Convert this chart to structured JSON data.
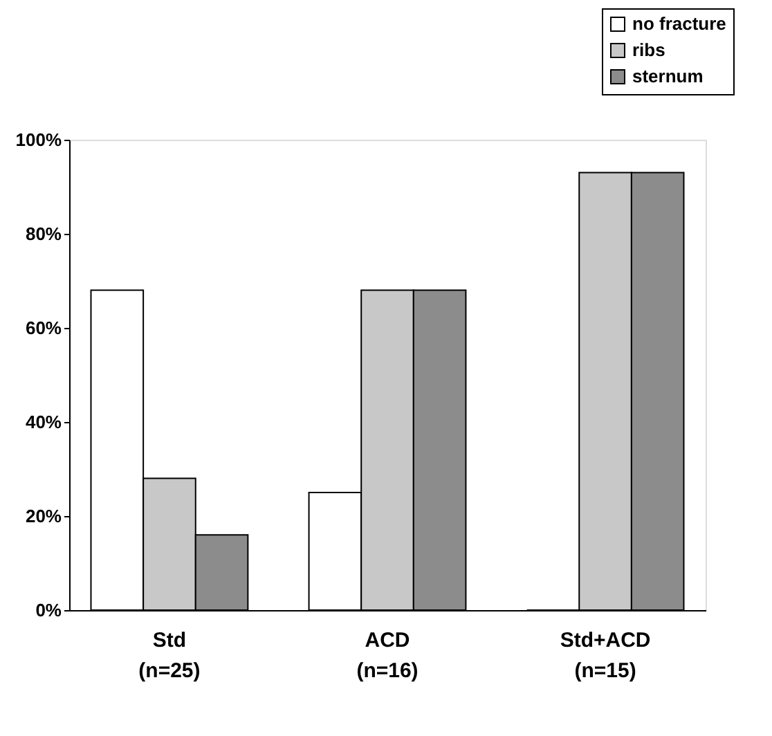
{
  "chart_data": {
    "type": "bar",
    "categories": [
      "Std\n(n=25)",
      "ACD\n(n=16)",
      "Std+ACD\n(n=15)"
    ],
    "series": [
      {
        "name": "no fracture",
        "color": "#ffffff",
        "values": [
          68,
          25,
          0
        ]
      },
      {
        "name": "ribs",
        "color": "#c8c8c8",
        "values": [
          28,
          68,
          93
        ]
      },
      {
        "name": "sternum",
        "color": "#8c8c8c",
        "values": [
          16,
          68,
          93
        ]
      }
    ],
    "ylim": [
      0,
      100
    ],
    "yticks": [
      {
        "value": 0,
        "label": "0%"
      },
      {
        "value": 20,
        "label": "20%"
      },
      {
        "value": 40,
        "label": "40%"
      },
      {
        "value": 60,
        "label": "60%"
      },
      {
        "value": 80,
        "label": "80%"
      },
      {
        "value": 100,
        "label": "100%"
      }
    ],
    "grid": false,
    "legend": "top right"
  }
}
